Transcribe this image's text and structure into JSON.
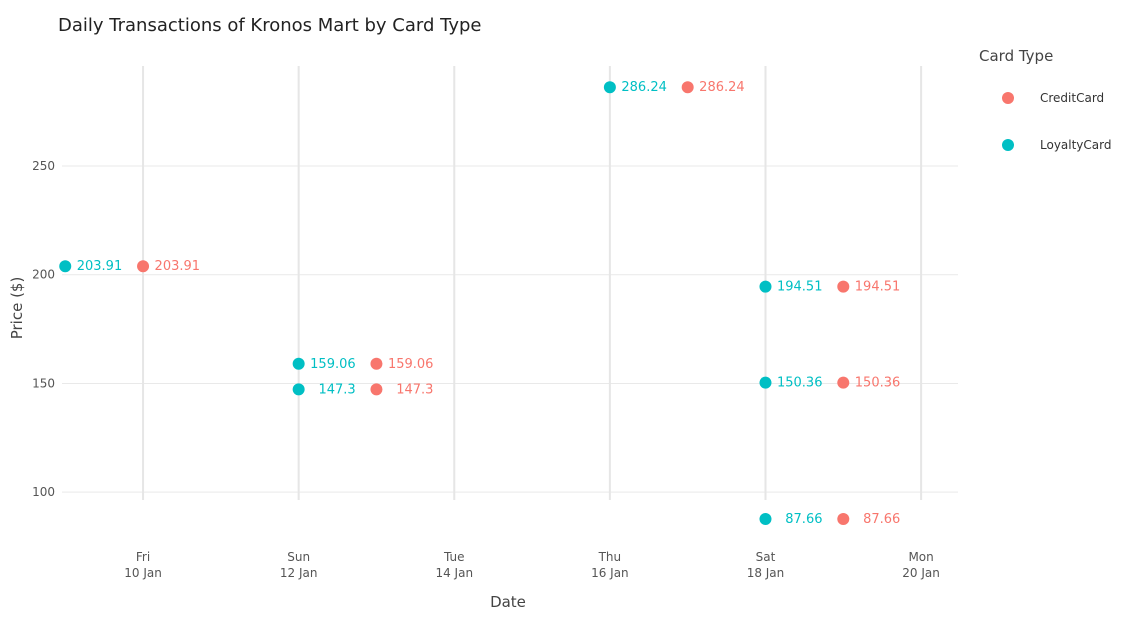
{
  "chart_data": {
    "type": "scatter",
    "title": "Daily Transactions of Kronos Mart by Card Type",
    "xlabel": "Date",
    "ylabel": "Price ($)",
    "xticks": [
      {
        "date": "2014-01-10",
        "day": "Fri",
        "label": "10 Jan"
      },
      {
        "date": "2014-01-12",
        "day": "Sun",
        "label": "12 Jan"
      },
      {
        "date": "2014-01-14",
        "day": "Tue",
        "label": "14 Jan"
      },
      {
        "date": "2014-01-16",
        "day": "Thu",
        "label": "16 Jan"
      },
      {
        "date": "2014-01-18",
        "day": "Sat",
        "label": "18 Jan"
      },
      {
        "date": "2014-01-20",
        "day": "Mon",
        "label": "20 Jan"
      }
    ],
    "yticks": [
      100,
      150,
      200,
      250
    ],
    "xlim": [
      "2014-01-08 23:00",
      "2014-01-20 12:00"
    ],
    "ylim": [
      78,
      296
    ],
    "grid": true,
    "legend": {
      "title": "Card Type",
      "position": "right",
      "entries": [
        "CreditCard",
        "LoyaltyCard"
      ]
    },
    "series": [
      {
        "name": "CreditCard",
        "color": "#F8766D",
        "points": [
          {
            "x": "2014-01-10",
            "y": 203.91,
            "label": "203.91"
          },
          {
            "x": "2014-01-13",
            "y": 159.06,
            "label": "159.06"
          },
          {
            "x": "2014-01-13",
            "y": 147.3,
            "label": "147.3"
          },
          {
            "x": "2014-01-17",
            "y": 286.24,
            "label": "286.24"
          },
          {
            "x": "2014-01-19",
            "y": 194.51,
            "label": "194.51"
          },
          {
            "x": "2014-01-19",
            "y": 150.36,
            "label": "150.36"
          },
          {
            "x": "2014-01-19",
            "y": 87.66,
            "label": "87.66"
          }
        ]
      },
      {
        "name": "LoyaltyCard",
        "color": "#00BFC4",
        "points": [
          {
            "x": "2014-01-09",
            "y": 203.91,
            "label": "203.91"
          },
          {
            "x": "2014-01-12",
            "y": 159.06,
            "label": "159.06"
          },
          {
            "x": "2014-01-12",
            "y": 147.3,
            "label": "147.3"
          },
          {
            "x": "2014-01-16",
            "y": 286.24,
            "label": "286.24"
          },
          {
            "x": "2014-01-18",
            "y": 194.51,
            "label": "194.51"
          },
          {
            "x": "2014-01-18",
            "y": 150.36,
            "label": "150.36"
          },
          {
            "x": "2014-01-18",
            "y": 87.66,
            "label": "87.66"
          }
        ]
      }
    ]
  }
}
